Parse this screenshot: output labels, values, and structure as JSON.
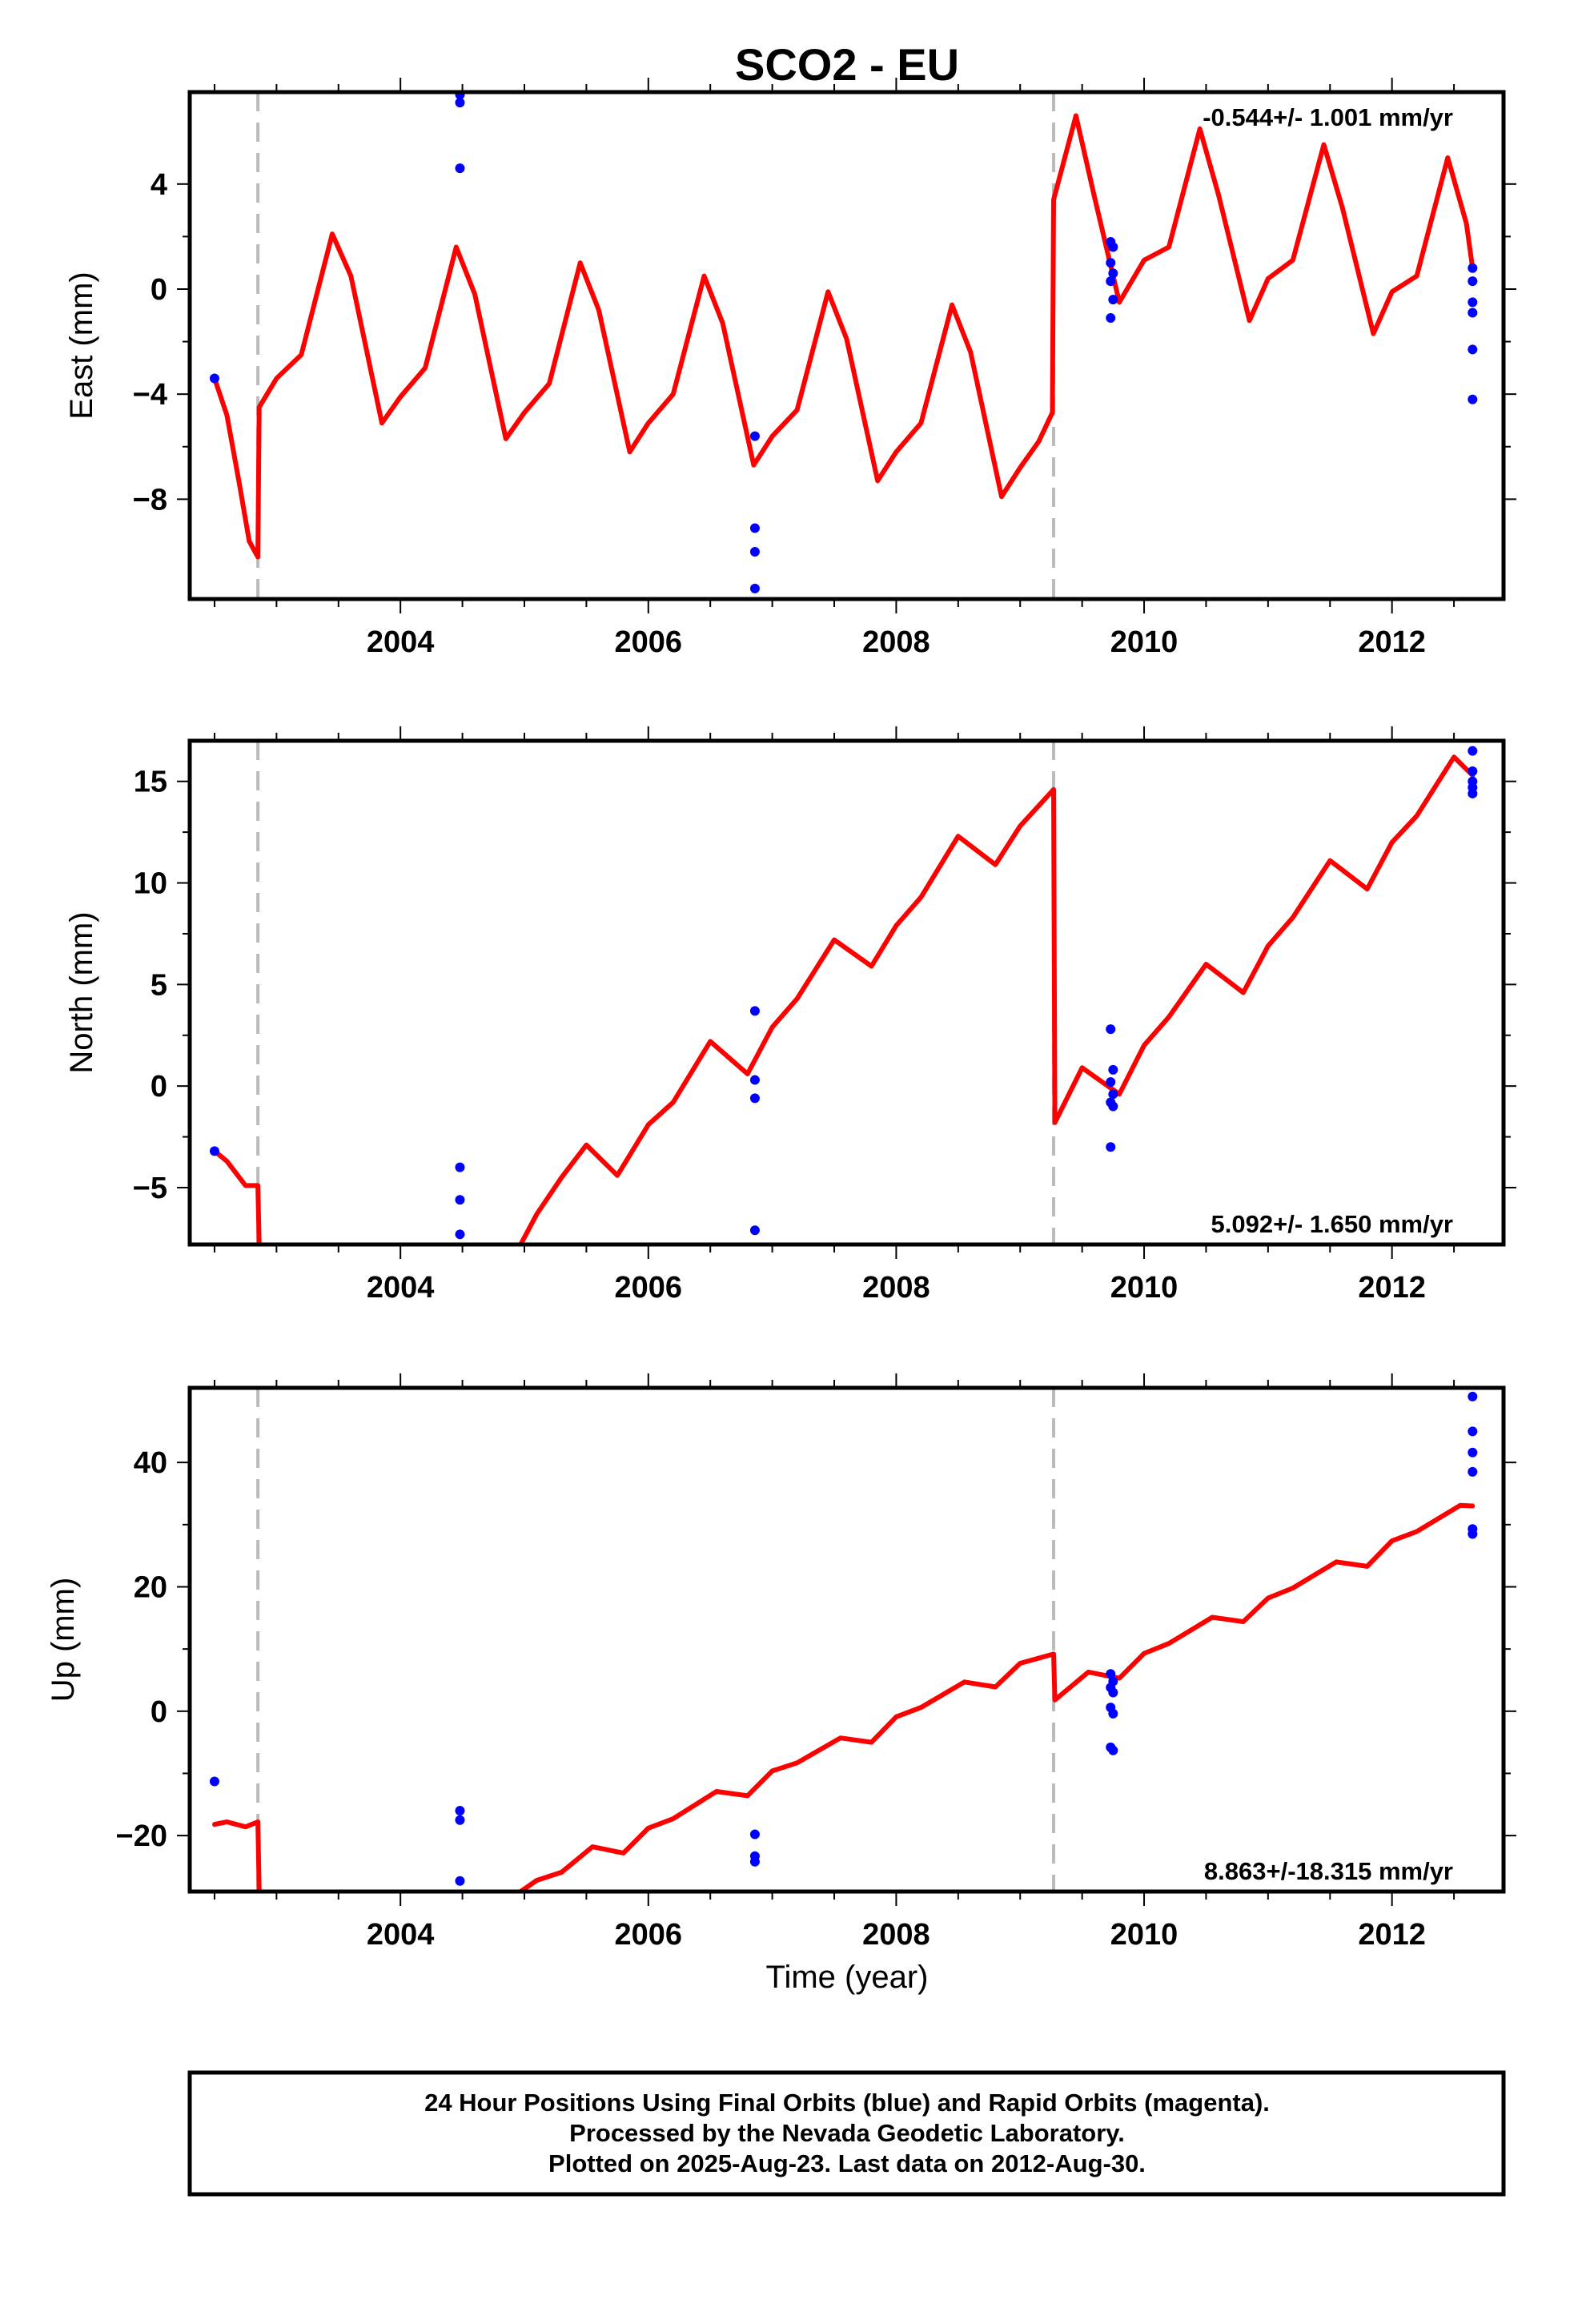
{
  "title": "SCO2 - EU",
  "x_axis": {
    "label": "Time (year)",
    "range": [
      2002.3,
      2012.9
    ],
    "ticks": [
      2004,
      2006,
      2008,
      2010,
      2012
    ]
  },
  "colors": {
    "model": "#ff0000",
    "final_orbits": "#0000ff",
    "offset_line": "#bbbbbb",
    "frame": "#000000"
  },
  "offsets": [
    2002.85,
    2009.27
  ],
  "panels": [
    {
      "label": "East (mm)",
      "rate": "-0.544+/- 1.001 mm/yr",
      "rate_position": "top-right"
    },
    {
      "label": "North (mm)",
      "rate": "5.092+/- 1.650 mm/yr",
      "rate_position": "bottom-right"
    },
    {
      "label": "Up (mm)",
      "rate": "8.863+/-18.315 mm/yr",
      "rate_position": "bottom-right"
    }
  ],
  "footer": {
    "line1": "24 Hour Positions Using Final Orbits (blue) and Rapid Orbits (magenta).",
    "line2": "Processed by the Nevada Geodetic Laboratory.",
    "line3": "Plotted on 2025-Aug-23. Last data on 2012-Aug-30."
  },
  "chart_data": [
    {
      "type": "scatter",
      "title": "SCO2 - EU",
      "ylabel": "East (mm)",
      "xlabel": "",
      "xlim": [
        2002.3,
        2012.9
      ],
      "ylim": [
        -11.8,
        7.5
      ],
      "yticks": [
        -8,
        -4,
        0,
        4
      ],
      "series": [
        {
          "values": [
            [
              2002.5,
              -3.4
            ],
            [
              2004.48,
              7.4
            ],
            [
              2004.48,
              7.1
            ],
            [
              2004.48,
              4.6
            ],
            [
              2006.86,
              -5.6
            ],
            [
              2006.86,
              -9.1
            ],
            [
              2006.86,
              -10.0
            ],
            [
              2006.86,
              -11.4
            ],
            [
              2009.73,
              1.8
            ],
            [
              2009.75,
              1.6
            ],
            [
              2009.73,
              1.0
            ],
            [
              2009.75,
              0.6
            ],
            [
              2009.73,
              0.3
            ],
            [
              2009.75,
              -0.4
            ],
            [
              2009.73,
              -1.1
            ],
            [
              2012.65,
              0.8
            ],
            [
              2012.65,
              0.3
            ],
            [
              2012.65,
              -0.5
            ],
            [
              2012.65,
              -0.9
            ],
            [
              2012.65,
              -2.3
            ],
            [
              2012.65,
              -4.2
            ]
          ]
        },
        {
          "values": [
            [
              2002.5,
              -3.4
            ],
            [
              2002.6,
              -4.8
            ],
            [
              2002.7,
              -7.4
            ],
            [
              2002.78,
              -9.6
            ],
            [
              2002.85,
              -10.2
            ],
            [
              2002.86,
              -4.5
            ],
            [
              2003.0,
              -3.4
            ],
            [
              2003.2,
              -2.5
            ],
            [
              2003.45,
              2.1
            ],
            [
              2003.6,
              0.5
            ],
            [
              2003.85,
              -5.1
            ],
            [
              2004.0,
              -4.1
            ],
            [
              2004.2,
              -3.0
            ],
            [
              2004.45,
              1.6
            ],
            [
              2004.6,
              -0.2
            ],
            [
              2004.85,
              -5.7
            ],
            [
              2005.0,
              -4.7
            ],
            [
              2005.2,
              -3.6
            ],
            [
              2005.45,
              1.0
            ],
            [
              2005.6,
              -0.8
            ],
            [
              2005.85,
              -6.2
            ],
            [
              2006.0,
              -5.1
            ],
            [
              2006.2,
              -4.0
            ],
            [
              2006.45,
              0.5
            ],
            [
              2006.6,
              -1.3
            ],
            [
              2006.85,
              -6.7
            ],
            [
              2007.0,
              -5.6
            ],
            [
              2007.2,
              -4.6
            ],
            [
              2007.45,
              -0.1
            ],
            [
              2007.6,
              -1.9
            ],
            [
              2007.85,
              -7.3
            ],
            [
              2008.0,
              -6.2
            ],
            [
              2008.2,
              -5.1
            ],
            [
              2008.45,
              -0.6
            ],
            [
              2008.6,
              -2.4
            ],
            [
              2008.85,
              -7.9
            ],
            [
              2009.0,
              -6.8
            ],
            [
              2009.15,
              -5.8
            ],
            [
              2009.26,
              -4.7
            ],
            [
              2009.27,
              3.4
            ],
            [
              2009.45,
              6.6
            ],
            [
              2009.6,
              3.5
            ],
            [
              2009.8,
              -0.5
            ],
            [
              2010.0,
              1.1
            ],
            [
              2010.2,
              1.6
            ],
            [
              2010.45,
              6.1
            ],
            [
              2010.6,
              3.6
            ],
            [
              2010.85,
              -1.2
            ],
            [
              2011.0,
              0.4
            ],
            [
              2011.2,
              1.1
            ],
            [
              2011.45,
              5.5
            ],
            [
              2011.6,
              3.1
            ],
            [
              2011.85,
              -1.7
            ],
            [
              2012.0,
              -0.1
            ],
            [
              2012.2,
              0.5
            ],
            [
              2012.45,
              5.0
            ],
            [
              2012.6,
              2.5
            ],
            [
              2012.65,
              0.8
            ]
          ]
        }
      ]
    },
    {
      "type": "scatter",
      "ylabel": "North (mm)",
      "xlabel": "",
      "xlim": [
        2002.3,
        2012.9
      ],
      "ylim": [
        -7.8,
        17.0
      ],
      "yticks": [
        -5,
        0,
        5,
        10,
        15
      ],
      "series": [
        {
          "values": [
            [
              2002.5,
              -3.2
            ],
            [
              2004.48,
              -4.0
            ],
            [
              2004.48,
              -5.6
            ],
            [
              2004.48,
              -7.3
            ],
            [
              2006.86,
              3.7
            ],
            [
              2006.86,
              0.3
            ],
            [
              2006.86,
              -0.6
            ],
            [
              2006.86,
              -7.1
            ],
            [
              2009.73,
              2.8
            ],
            [
              2009.75,
              0.8
            ],
            [
              2009.73,
              0.2
            ],
            [
              2009.75,
              -0.4
            ],
            [
              2009.73,
              -0.8
            ],
            [
              2009.75,
              -1.0
            ],
            [
              2009.73,
              -3.0
            ],
            [
              2012.65,
              16.5
            ],
            [
              2012.65,
              15.5
            ],
            [
              2012.65,
              15.0
            ],
            [
              2012.65,
              14.7
            ],
            [
              2012.65,
              14.4
            ]
          ]
        },
        {
          "values": [
            [
              2002.5,
              -3.2
            ],
            [
              2002.6,
              -3.7
            ],
            [
              2002.75,
              -4.9
            ],
            [
              2002.85,
              -4.9
            ],
            [
              2002.86,
              -7.8
            ]
          ]
        },
        {
          "values": [
            [
              2004.97,
              -7.8
            ],
            [
              2005.1,
              -6.3
            ],
            [
              2005.3,
              -4.5
            ],
            [
              2005.5,
              -2.9
            ],
            [
              2005.75,
              -4.4
            ],
            [
              2006.0,
              -1.9
            ],
            [
              2006.2,
              -0.8
            ],
            [
              2006.5,
              2.2
            ],
            [
              2006.8,
              0.6
            ],
            [
              2007.0,
              2.9
            ],
            [
              2007.2,
              4.3
            ],
            [
              2007.5,
              7.2
            ],
            [
              2007.8,
              5.9
            ],
            [
              2008.0,
              7.9
            ],
            [
              2008.2,
              9.3
            ],
            [
              2008.5,
              12.3
            ],
            [
              2008.8,
              10.9
            ],
            [
              2009.0,
              12.8
            ],
            [
              2009.27,
              14.6
            ],
            [
              2009.28,
              -1.8
            ],
            [
              2009.5,
              0.9
            ],
            [
              2009.8,
              -0.4
            ],
            [
              2010.0,
              2.0
            ],
            [
              2010.2,
              3.4
            ],
            [
              2010.5,
              6.0
            ],
            [
              2010.8,
              4.6
            ],
            [
              2011.0,
              6.9
            ],
            [
              2011.2,
              8.3
            ],
            [
              2011.5,
              11.1
            ],
            [
              2011.8,
              9.7
            ],
            [
              2012.0,
              12.0
            ],
            [
              2012.2,
              13.3
            ],
            [
              2012.5,
              16.2
            ],
            [
              2012.65,
              15.3
            ]
          ]
        }
      ]
    },
    {
      "type": "scatter",
      "ylabel": "Up (mm)",
      "xlabel": "Time (year)",
      "xlim": [
        2002.3,
        2012.9
      ],
      "ylim": [
        -29,
        52
      ],
      "yticks": [
        -20,
        0,
        20,
        40
      ],
      "series": [
        {
          "values": [
            [
              2002.5,
              -11.3
            ],
            [
              2004.48,
              -16.0
            ],
            [
              2004.48,
              -17.5
            ],
            [
              2004.48,
              -27.3
            ],
            [
              2006.86,
              -19.8
            ],
            [
              2006.86,
              -23.3
            ],
            [
              2006.86,
              -24.2
            ],
            [
              2009.73,
              6.0
            ],
            [
              2009.75,
              4.8
            ],
            [
              2009.73,
              3.8
            ],
            [
              2009.75,
              3.0
            ],
            [
              2009.73,
              0.6
            ],
            [
              2009.75,
              -0.4
            ],
            [
              2009.73,
              -5.8
            ],
            [
              2009.75,
              -6.3
            ],
            [
              2012.65,
              50.6
            ],
            [
              2012.65,
              45.0
            ],
            [
              2012.65,
              41.6
            ],
            [
              2012.65,
              38.5
            ],
            [
              2012.65,
              29.3
            ],
            [
              2012.65,
              28.5
            ]
          ]
        },
        {
          "values": [
            [
              2002.5,
              -18.2
            ],
            [
              2002.6,
              -17.8
            ],
            [
              2002.75,
              -18.6
            ],
            [
              2002.85,
              -17.8
            ],
            [
              2002.86,
              -29
            ]
          ]
        },
        {
          "values": [
            [
              2004.97,
              -29
            ],
            [
              2005.1,
              -27.2
            ],
            [
              2005.3,
              -25.9
            ],
            [
              2005.55,
              -21.8
            ],
            [
              2005.8,
              -22.8
            ],
            [
              2006.0,
              -18.8
            ],
            [
              2006.2,
              -17.3
            ],
            [
              2006.55,
              -12.9
            ],
            [
              2006.8,
              -13.6
            ],
            [
              2007.0,
              -9.6
            ],
            [
              2007.2,
              -8.3
            ],
            [
              2007.55,
              -4.3
            ],
            [
              2007.8,
              -5.0
            ],
            [
              2008.0,
              -0.9
            ],
            [
              2008.2,
              0.6
            ],
            [
              2008.55,
              4.7
            ],
            [
              2008.8,
              3.9
            ],
            [
              2009.0,
              7.7
            ],
            [
              2009.27,
              9.2
            ],
            [
              2009.28,
              1.8
            ],
            [
              2009.55,
              6.3
            ],
            [
              2009.8,
              5.3
            ],
            [
              2010.0,
              9.3
            ],
            [
              2010.2,
              10.9
            ],
            [
              2010.55,
              15.1
            ],
            [
              2010.8,
              14.4
            ],
            [
              2011.0,
              18.2
            ],
            [
              2011.2,
              19.8
            ],
            [
              2011.55,
              24.0
            ],
            [
              2011.8,
              23.3
            ],
            [
              2012.0,
              27.4
            ],
            [
              2012.2,
              28.9
            ],
            [
              2012.55,
              33.1
            ],
            [
              2012.65,
              33.0
            ]
          ]
        }
      ]
    }
  ]
}
